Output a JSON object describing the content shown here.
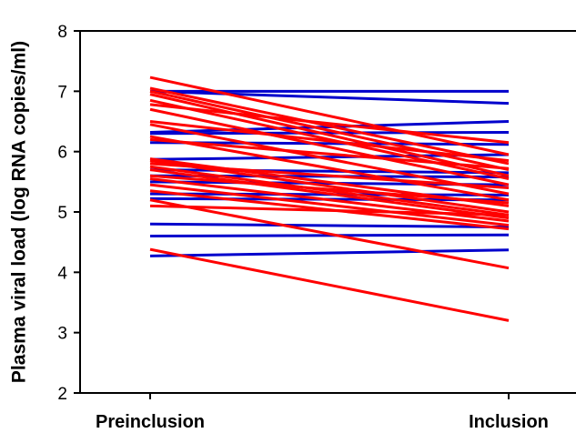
{
  "chart_data": {
    "type": "line",
    "title": "",
    "xlabel": "",
    "ylabel": "Plasma viral load (log RNA copies/ml)",
    "categories": [
      "Preinclusion",
      "Inclusion"
    ],
    "ylim": [
      2,
      8
    ],
    "yticks": [
      "2",
      "3",
      "4",
      "5",
      "6",
      "7",
      "8"
    ],
    "grid": false,
    "legend": "none",
    "colors": {
      "decrease": "#ff0000",
      "stable": "#0000cc",
      "axis": "#000000"
    },
    "series": [
      {
        "group": "stable",
        "values": [
          7.0,
          7.0
        ]
      },
      {
        "group": "stable",
        "values": [
          7.0,
          6.8
        ]
      },
      {
        "group": "stable",
        "values": [
          6.32,
          6.5
        ]
      },
      {
        "group": "stable",
        "values": [
          6.3,
          6.32
        ]
      },
      {
        "group": "stable",
        "values": [
          6.15,
          6.12
        ]
      },
      {
        "group": "stable",
        "values": [
          5.87,
          5.95
        ]
      },
      {
        "group": "stable",
        "values": [
          5.7,
          5.65
        ]
      },
      {
        "group": "stable",
        "values": [
          5.6,
          5.58
        ]
      },
      {
        "group": "stable",
        "values": [
          5.5,
          5.45
        ]
      },
      {
        "group": "stable",
        "values": [
          5.3,
          5.28
        ]
      },
      {
        "group": "stable",
        "values": [
          5.22,
          5.2
        ]
      },
      {
        "group": "stable",
        "values": [
          4.8,
          4.75
        ]
      },
      {
        "group": "stable",
        "values": [
          4.6,
          4.62
        ]
      },
      {
        "group": "stable",
        "values": [
          4.27,
          4.37
        ]
      },
      {
        "group": "decrease",
        "values": [
          7.23,
          5.95
        ]
      },
      {
        "group": "decrease",
        "values": [
          7.05,
          5.8
        ]
      },
      {
        "group": "decrease",
        "values": [
          7.0,
          5.7
        ]
      },
      {
        "group": "decrease",
        "values": [
          6.95,
          5.6
        ]
      },
      {
        "group": "decrease",
        "values": [
          6.85,
          5.55
        ]
      },
      {
        "group": "decrease",
        "values": [
          6.78,
          6.15
        ]
      },
      {
        "group": "decrease",
        "values": [
          6.7,
          5.45
        ]
      },
      {
        "group": "decrease",
        "values": [
          6.5,
          5.85
        ]
      },
      {
        "group": "decrease",
        "values": [
          6.45,
          5.3
        ]
      },
      {
        "group": "decrease",
        "values": [
          6.25,
          5.2
        ]
      },
      {
        "group": "decrease",
        "values": [
          6.2,
          5.72
        ]
      },
      {
        "group": "decrease",
        "values": [
          5.88,
          5.1
        ]
      },
      {
        "group": "decrease",
        "values": [
          5.85,
          5.0
        ]
      },
      {
        "group": "decrease",
        "values": [
          5.8,
          5.4
        ]
      },
      {
        "group": "decrease",
        "values": [
          5.75,
          4.95
        ]
      },
      {
        "group": "decrease",
        "values": [
          5.7,
          4.9
        ]
      },
      {
        "group": "decrease",
        "values": [
          5.6,
          5.15
        ]
      },
      {
        "group": "decrease",
        "values": [
          5.55,
          4.85
        ]
      },
      {
        "group": "decrease",
        "values": [
          5.45,
          4.78
        ]
      },
      {
        "group": "decrease",
        "values": [
          5.35,
          4.72
        ]
      },
      {
        "group": "decrease",
        "values": [
          5.1,
          4.95
        ]
      },
      {
        "group": "decrease",
        "values": [
          5.2,
          4.07
        ]
      },
      {
        "group": "decrease",
        "values": [
          4.38,
          3.2
        ]
      }
    ]
  }
}
